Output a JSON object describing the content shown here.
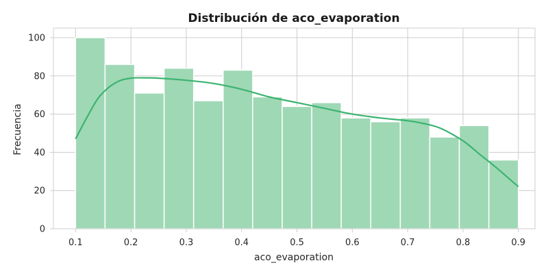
{
  "chart_data": {
    "type": "bar",
    "title": "Distribución de aco_evaporation",
    "xlabel": "aco_evaporation",
    "ylabel": "Frecuencia",
    "xlim": [
      0.06,
      0.93
    ],
    "ylim": [
      0,
      105
    ],
    "xticks": [
      "0.1",
      "0.2",
      "0.3",
      "0.4",
      "0.5",
      "0.6",
      "0.7",
      "0.8",
      "0.9"
    ],
    "yticks": [
      "0",
      "20",
      "40",
      "60",
      "80",
      "100"
    ],
    "grid": true,
    "bar_color": "#9fd8b5",
    "kde_color": "#3cb371",
    "bins": {
      "edges": [
        0.1,
        0.1533,
        0.2067,
        0.26,
        0.3133,
        0.3667,
        0.42,
        0.4733,
        0.5267,
        0.58,
        0.6333,
        0.6867,
        0.74,
        0.7933,
        0.8467,
        0.9
      ],
      "counts": [
        100,
        86,
        71,
        84,
        67,
        83,
        69,
        64,
        66,
        58,
        56,
        58,
        48,
        54,
        36
      ]
    },
    "kde": {
      "x": [
        0.1,
        0.12,
        0.14,
        0.16,
        0.18,
        0.2,
        0.22,
        0.25,
        0.3,
        0.35,
        0.4,
        0.45,
        0.5,
        0.55,
        0.6,
        0.65,
        0.7,
        0.73,
        0.76,
        0.8,
        0.83,
        0.86,
        0.9
      ],
      "y": [
        47,
        58,
        68,
        74,
        77.5,
        78.8,
        79,
        78.8,
        77.7,
        76,
        73,
        69,
        66,
        63,
        60,
        58,
        56.5,
        55,
        52.5,
        46,
        39,
        32,
        22
      ]
    }
  }
}
